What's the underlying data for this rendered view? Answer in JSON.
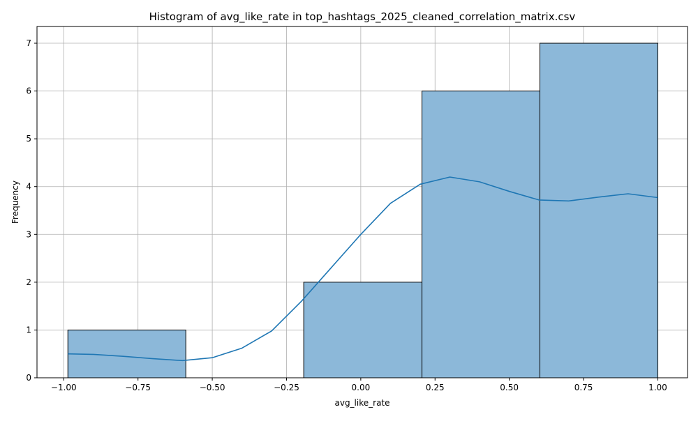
{
  "chart_data": {
    "type": "bar",
    "title": "Histogram of avg_like_rate in top_hashtags_2025_cleaned_correlation_matrix.csv",
    "xlabel": "avg_like_rate",
    "ylabel": "Frequency",
    "xlim": [
      -1.09,
      1.1
    ],
    "ylim": [
      0,
      7.35
    ],
    "grid": true,
    "x_ticks": [
      -1.0,
      -0.75,
      -0.5,
      -0.25,
      0.0,
      0.25,
      0.5,
      0.75,
      1.0
    ],
    "x_tick_labels": [
      "−1.00",
      "−0.75",
      "−0.50",
      "−0.25",
      "0.00",
      "0.25",
      "0.50",
      "0.75",
      "1.00"
    ],
    "y_ticks": [
      0,
      1,
      2,
      3,
      4,
      5,
      6,
      7
    ],
    "y_tick_labels": [
      "0",
      "1",
      "2",
      "3",
      "4",
      "5",
      "6",
      "7"
    ],
    "bins": [
      {
        "start": -0.986,
        "end": -0.589,
        "count": 1
      },
      {
        "start": -0.589,
        "end": -0.192,
        "count": 0
      },
      {
        "start": -0.192,
        "end": 0.206,
        "count": 2
      },
      {
        "start": 0.206,
        "end": 0.603,
        "count": 6
      },
      {
        "start": 0.603,
        "end": 1.0,
        "count": 7
      }
    ],
    "kde": {
      "x": [
        -0.986,
        -0.9,
        -0.8,
        -0.7,
        -0.6,
        -0.5,
        -0.4,
        -0.3,
        -0.2,
        -0.1,
        0.0,
        0.1,
        0.2,
        0.3,
        0.4,
        0.5,
        0.6,
        0.7,
        0.8,
        0.9,
        1.0
      ],
      "y": [
        0.5,
        0.49,
        0.45,
        0.4,
        0.36,
        0.42,
        0.62,
        0.98,
        1.6,
        2.3,
        3.0,
        3.65,
        4.05,
        4.2,
        4.1,
        3.9,
        3.72,
        3.7,
        3.78,
        3.85,
        3.77
      ]
    },
    "colors": {
      "bar_fill": "#8cb8d9",
      "bar_edge": "#000000",
      "kde_line": "#1f77b4",
      "grid": "#b0b0b0"
    }
  }
}
